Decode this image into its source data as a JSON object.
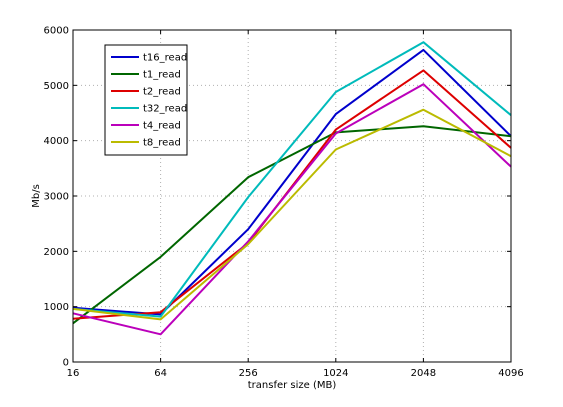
{
  "chart_data": {
    "type": "line",
    "title": "",
    "xlabel": "transfer size (MB)",
    "ylabel": "Mb/s",
    "categories": [
      "16",
      "64",
      "256",
      "1024",
      "2048",
      "4096"
    ],
    "ylim": [
      0,
      6000
    ],
    "yticks": [
      "0",
      "1000",
      "2000",
      "3000",
      "4000",
      "5000",
      "6000"
    ],
    "grid": "dotted",
    "legend_position": "top-left",
    "series": [
      {
        "name": "t16_read",
        "color": "#0000cc",
        "values": [
          980,
          860,
          2400,
          4480,
          5640,
          4080
        ]
      },
      {
        "name": "t1_read",
        "color": "#006600",
        "values": [
          700,
          1900,
          3340,
          4150,
          4260,
          4080
        ]
      },
      {
        "name": "t2_read",
        "color": "#dd0000",
        "values": [
          780,
          900,
          2150,
          4200,
          5270,
          3870
        ]
      },
      {
        "name": "t32_read",
        "color": "#00bbbb",
        "values": [
          960,
          820,
          2980,
          4880,
          5780,
          4460
        ]
      },
      {
        "name": "t4_read",
        "color": "#bb00bb",
        "values": [
          880,
          500,
          2180,
          4130,
          5020,
          3530
        ]
      },
      {
        "name": "t8_read",
        "color": "#bbbb00",
        "values": [
          960,
          770,
          2130,
          3840,
          4560,
          3720
        ]
      }
    ]
  }
}
